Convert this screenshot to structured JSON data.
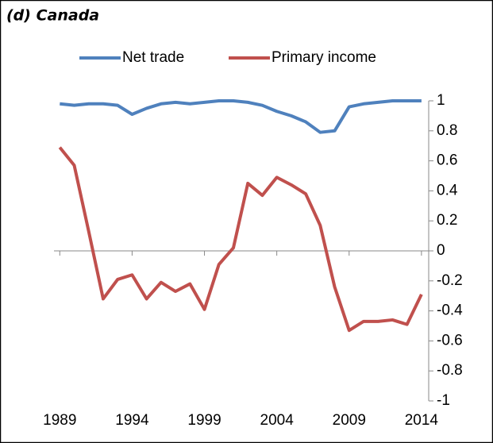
{
  "chart_data": {
    "type": "line",
    "title": "(d) Canada",
    "x": [
      1989,
      1990,
      1991,
      1992,
      1993,
      1994,
      1995,
      1996,
      1997,
      1998,
      1999,
      2000,
      2001,
      2002,
      2003,
      2004,
      2005,
      2006,
      2007,
      2008,
      2009,
      2010,
      2011,
      2012,
      2013,
      2014
    ],
    "series": [
      {
        "name": "Net trade",
        "color": "#4f81bd",
        "values": [
          0.98,
          0.97,
          0.98,
          0.98,
          0.97,
          0.91,
          0.95,
          0.98,
          0.99,
          0.98,
          0.99,
          1.0,
          1.0,
          0.99,
          0.97,
          0.93,
          0.9,
          0.86,
          0.79,
          0.8,
          0.96,
          0.98,
          0.99,
          1.0,
          1.0,
          1.0
        ]
      },
      {
        "name": "Primary income",
        "color": "#c0504d",
        "values": [
          0.69,
          0.57,
          0.13,
          -0.32,
          -0.19,
          -0.16,
          -0.32,
          -0.21,
          -0.27,
          -0.22,
          -0.39,
          -0.09,
          0.02,
          0.45,
          0.37,
          0.49,
          0.44,
          0.38,
          0.17,
          -0.24,
          -0.53,
          -0.47,
          -0.47,
          -0.46,
          -0.49,
          -0.29
        ]
      }
    ],
    "xlim": [
      1988.6,
      2014.5
    ],
    "xticks": [
      1989,
      1994,
      1999,
      2004,
      2009,
      2014
    ],
    "ylim": [
      -1,
      1
    ],
    "yticks": [
      1,
      0.8,
      0.6,
      0.4,
      0.2,
      0,
      -0.2,
      -0.4,
      -0.6,
      -0.8,
      -1
    ],
    "legend": "top"
  }
}
